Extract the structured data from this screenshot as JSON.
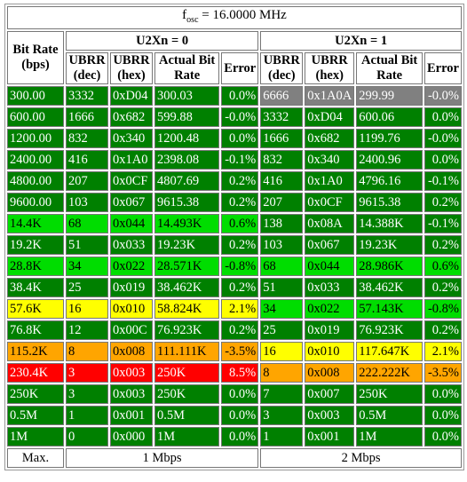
{
  "header": {
    "fosc_prefix": "f",
    "fosc_sub": "osc",
    "fosc_value": " = 16.0000 MHz",
    "bitrate_label": "Bit Rate (bps)",
    "u2x0_label": "U2Xn = 0",
    "u2x1_label": "U2Xn = 1",
    "col_ubrr_dec": "UBRR (dec)",
    "col_ubrr_hex": "UBRR (hex)",
    "col_actual": "Actual Bit Rate",
    "col_error": "Error"
  },
  "colors": {
    "green": "#008000",
    "light_green": "#00dd00",
    "yellow": "#ffff00",
    "orange": "#ffa500",
    "red": "#ff0000",
    "gray": "#808080"
  },
  "rows": [
    {
      "rate": "300.00",
      "a": {
        "dec": "3332",
        "hex": "0xD04",
        "act": "300.03",
        "err": "0.0%",
        "c": "g"
      },
      "b": {
        "dec": "6666",
        "hex": "0x1A0A",
        "act": "299.99",
        "err": "-0.0%",
        "c": "gr"
      }
    },
    {
      "rate": "600.00",
      "a": {
        "dec": "1666",
        "hex": "0x682",
        "act": "599.88",
        "err": "-0.0%",
        "c": "g"
      },
      "b": {
        "dec": "3332",
        "hex": "0xD04",
        "act": "600.06",
        "err": "0.0%",
        "c": "g"
      }
    },
    {
      "rate": "1200.00",
      "a": {
        "dec": "832",
        "hex": "0x340",
        "act": "1200.48",
        "err": "0.0%",
        "c": "g"
      },
      "b": {
        "dec": "1666",
        "hex": "0x682",
        "act": "1199.76",
        "err": "-0.0%",
        "c": "g"
      }
    },
    {
      "rate": "2400.00",
      "a": {
        "dec": "416",
        "hex": "0x1A0",
        "act": "2398.08",
        "err": "-0.1%",
        "c": "g"
      },
      "b": {
        "dec": "832",
        "hex": "0x340",
        "act": "2400.96",
        "err": "0.0%",
        "c": "g"
      }
    },
    {
      "rate": "4800.00",
      "a": {
        "dec": "207",
        "hex": "0x0CF",
        "act": "4807.69",
        "err": "0.2%",
        "c": "g"
      },
      "b": {
        "dec": "416",
        "hex": "0x1A0",
        "act": "4796.16",
        "err": "-0.1%",
        "c": "g"
      }
    },
    {
      "rate": "9600.00",
      "a": {
        "dec": "103",
        "hex": "0x067",
        "act": "9615.38",
        "err": "0.2%",
        "c": "g"
      },
      "b": {
        "dec": "207",
        "hex": "0x0CF",
        "act": "9615.38",
        "err": "0.2%",
        "c": "g"
      }
    },
    {
      "rate": "14.4K",
      "a": {
        "dec": "68",
        "hex": "0x044",
        "act": "14.493K",
        "err": "0.6%",
        "c": "lg"
      },
      "b": {
        "dec": "138",
        "hex": "0x08A",
        "act": "14.388K",
        "err": "-0.1%",
        "c": "g"
      }
    },
    {
      "rate": "19.2K",
      "a": {
        "dec": "51",
        "hex": "0x033",
        "act": "19.23K",
        "err": "0.2%",
        "c": "g"
      },
      "b": {
        "dec": "103",
        "hex": "0x067",
        "act": "19.23K",
        "err": "0.2%",
        "c": "g"
      }
    },
    {
      "rate": "28.8K",
      "a": {
        "dec": "34",
        "hex": "0x022",
        "act": "28.571K",
        "err": "-0.8%",
        "c": "lg"
      },
      "b": {
        "dec": "68",
        "hex": "0x044",
        "act": "28.986K",
        "err": "0.6%",
        "c": "lg"
      }
    },
    {
      "rate": "38.4K",
      "a": {
        "dec": "25",
        "hex": "0x019",
        "act": "38.462K",
        "err": "0.2%",
        "c": "g"
      },
      "b": {
        "dec": "51",
        "hex": "0x033",
        "act": "38.462K",
        "err": "0.2%",
        "c": "g"
      }
    },
    {
      "rate": "57.6K",
      "a": {
        "dec": "16",
        "hex": "0x010",
        "act": "58.824K",
        "err": "2.1%",
        "c": "y"
      },
      "b": {
        "dec": "34",
        "hex": "0x022",
        "act": "57.143K",
        "err": "-0.8%",
        "c": "lg"
      }
    },
    {
      "rate": "76.8K",
      "a": {
        "dec": "12",
        "hex": "0x00C",
        "act": "76.923K",
        "err": "0.2%",
        "c": "g"
      },
      "b": {
        "dec": "25",
        "hex": "0x019",
        "act": "76.923K",
        "err": "0.2%",
        "c": "g"
      }
    },
    {
      "rate": "115.2K",
      "a": {
        "dec": "8",
        "hex": "0x008",
        "act": "111.111K",
        "err": "-3.5%",
        "c": "o"
      },
      "b": {
        "dec": "16",
        "hex": "0x010",
        "act": "117.647K",
        "err": "2.1%",
        "c": "y"
      }
    },
    {
      "rate": "230.4K",
      "a": {
        "dec": "3",
        "hex": "0x003",
        "act": "250K",
        "err": "8.5%",
        "c": "r"
      },
      "b": {
        "dec": "8",
        "hex": "0x008",
        "act": "222.222K",
        "err": "-3.5%",
        "c": "o"
      }
    },
    {
      "rate": "250K",
      "a": {
        "dec": "3",
        "hex": "0x003",
        "act": "250K",
        "err": "0.0%",
        "c": "g"
      },
      "b": {
        "dec": "7",
        "hex": "0x007",
        "act": "250K",
        "err": "0.0%",
        "c": "g"
      }
    },
    {
      "rate": "0.5M",
      "a": {
        "dec": "1",
        "hex": "0x001",
        "act": "0.5M",
        "err": "0.0%",
        "c": "g"
      },
      "b": {
        "dec": "3",
        "hex": "0x003",
        "act": "0.5M",
        "err": "0.0%",
        "c": "g"
      }
    },
    {
      "rate": "1M",
      "a": {
        "dec": "0",
        "hex": "0x000",
        "act": "1M",
        "err": "0.0%",
        "c": "g"
      },
      "b": {
        "dec": "1",
        "hex": "0x001",
        "act": "1M",
        "err": "0.0%",
        "c": "g"
      }
    }
  ],
  "footer": {
    "max_label": "Max.",
    "max_u2x0": "1 Mbps",
    "max_u2x1": "2 Mbps"
  }
}
